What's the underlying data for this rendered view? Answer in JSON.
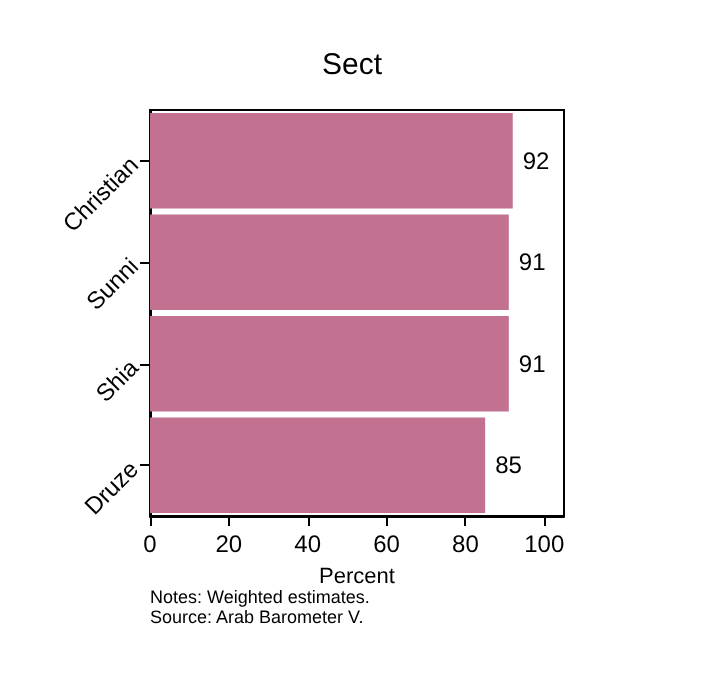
{
  "chart_data": {
    "type": "bar",
    "orientation": "horizontal",
    "title": "Sect",
    "xlabel": "Percent",
    "categories": [
      "Christian",
      "Sunni",
      "Shia",
      "Druze"
    ],
    "values": [
      92,
      91,
      91,
      85
    ],
    "color": "#c27191",
    "data_labels": true,
    "xlim": [
      0,
      105
    ],
    "xticks": [
      0,
      20,
      40,
      60,
      80,
      100
    ],
    "grid": false,
    "annotations": [
      "Notes: Weighted estimates.",
      "Source: Arab Barometer V."
    ]
  }
}
